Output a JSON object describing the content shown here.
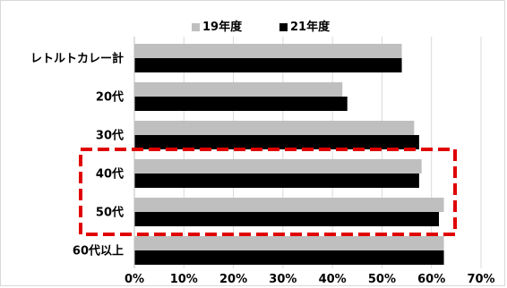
{
  "chart_data": {
    "type": "bar",
    "orientation": "horizontal",
    "categories": [
      "レトルトカレー計",
      "20代",
      "30代",
      "40代",
      "50代",
      "60代以上"
    ],
    "series": [
      {
        "name": "19年度",
        "values": [
          54,
          42,
          56.5,
          58,
          62.5,
          62.5
        ],
        "color": "#bfbfbf"
      },
      {
        "name": "21年度",
        "values": [
          54,
          43,
          57.5,
          57.5,
          61.5,
          62.5
        ],
        "color": "#000000"
      }
    ],
    "xlim": [
      0,
      70
    ],
    "x_ticks": [
      "0%",
      "10%",
      "20%",
      "30%",
      "40%",
      "50%",
      "60%",
      "70%"
    ],
    "grid": true,
    "legend_position": "top",
    "highlight": {
      "categories": [
        "40代",
        "50代"
      ],
      "style": "red-dashed-box",
      "color": "#e00000"
    }
  }
}
